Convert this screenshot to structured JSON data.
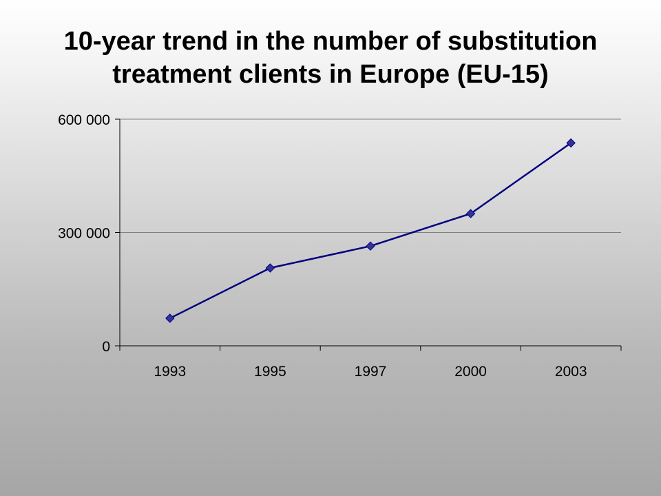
{
  "slide": {
    "title": "10-year trend in the number of substitution treatment clients in Europe (EU-15)"
  },
  "chart_data": {
    "type": "line",
    "title": "10-year trend in the number of substitution treatment clients in Europe (EU-15)",
    "categories": [
      "1993",
      "1995",
      "1997",
      "2000",
      "2003"
    ],
    "series": [
      {
        "values": [
          73000,
          206000,
          264000,
          350000,
          537000
        ],
        "color": "#000080",
        "marker_color": "#333399",
        "marker": "diamond"
      }
    ],
    "ylim": [
      0,
      600000
    ],
    "yticks": [
      0,
      300000,
      600000
    ],
    "ytick_labels": [
      "0",
      "300 000",
      "600 000"
    ],
    "grid": true,
    "legend": "none"
  }
}
